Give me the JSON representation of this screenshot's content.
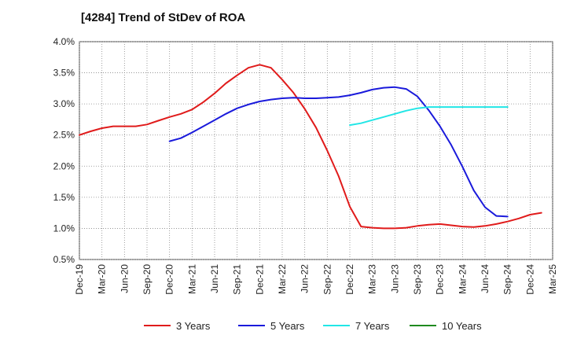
{
  "chart_data": {
    "type": "line",
    "title": "[4284]  Trend of StDev of ROA",
    "xlabel": "",
    "ylabel": "",
    "ylim": [
      0.5,
      4.0
    ],
    "y_ticks": [
      "0.5%",
      "1.0%",
      "1.5%",
      "2.0%",
      "2.5%",
      "3.0%",
      "3.5%",
      "4.0%"
    ],
    "y_tick_values": [
      0.5,
      1.0,
      1.5,
      2.0,
      2.5,
      3.0,
      3.5,
      4.0
    ],
    "x_ticks": [
      "Dec-19",
      "Mar-20",
      "Jun-20",
      "Sep-20",
      "Dec-20",
      "Mar-21",
      "Jun-21",
      "Sep-21",
      "Dec-21",
      "Mar-22",
      "Jun-22",
      "Sep-22",
      "Dec-22",
      "Mar-23",
      "Jun-23",
      "Sep-23",
      "Dec-23",
      "Mar-24",
      "Jun-24",
      "Sep-24",
      "Dec-24",
      "Mar-25"
    ],
    "grid": true,
    "legend_position": "bottom",
    "series": [
      {
        "name": "3 Years",
        "color": "#e01b1b",
        "values": [
          2.5,
          2.56,
          2.61,
          2.64,
          2.64,
          2.64,
          2.67,
          2.73,
          2.79,
          2.84,
          2.91,
          3.03,
          3.17,
          3.33,
          3.46,
          3.58,
          3.63,
          3.58,
          3.39,
          3.18,
          2.92,
          2.62,
          2.25,
          1.84,
          1.35,
          1.03,
          1.01,
          1.0,
          1.0,
          1.01,
          1.04,
          1.06,
          1.07,
          1.05,
          1.03,
          1.02,
          1.04,
          1.07,
          1.11,
          1.16,
          1.22,
          1.25
        ]
      },
      {
        "name": "5 Years",
        "color": "#1a1adb",
        "values": [
          null,
          null,
          null,
          null,
          null,
          null,
          null,
          null,
          2.4,
          2.45,
          2.54,
          2.64,
          2.74,
          2.84,
          2.93,
          2.99,
          3.04,
          3.07,
          3.09,
          3.1,
          3.09,
          3.09,
          3.1,
          3.11,
          3.14,
          3.18,
          3.23,
          3.26,
          3.27,
          3.24,
          3.12,
          2.9,
          2.64,
          2.34,
          1.99,
          1.61,
          1.34,
          1.2,
          1.19,
          null,
          null,
          null
        ]
      },
      {
        "name": "7 Years",
        "color": "#22e6e6",
        "values": [
          null,
          null,
          null,
          null,
          null,
          null,
          null,
          null,
          null,
          null,
          null,
          null,
          null,
          null,
          null,
          null,
          null,
          null,
          null,
          null,
          null,
          null,
          null,
          null,
          2.66,
          2.69,
          2.74,
          2.79,
          2.84,
          2.89,
          2.93,
          2.95,
          2.95,
          2.95,
          2.95,
          2.95,
          2.95,
          2.95,
          2.95,
          null,
          null,
          null
        ]
      },
      {
        "name": "10 Years",
        "color": "#1f8a1f",
        "values": []
      }
    ]
  }
}
